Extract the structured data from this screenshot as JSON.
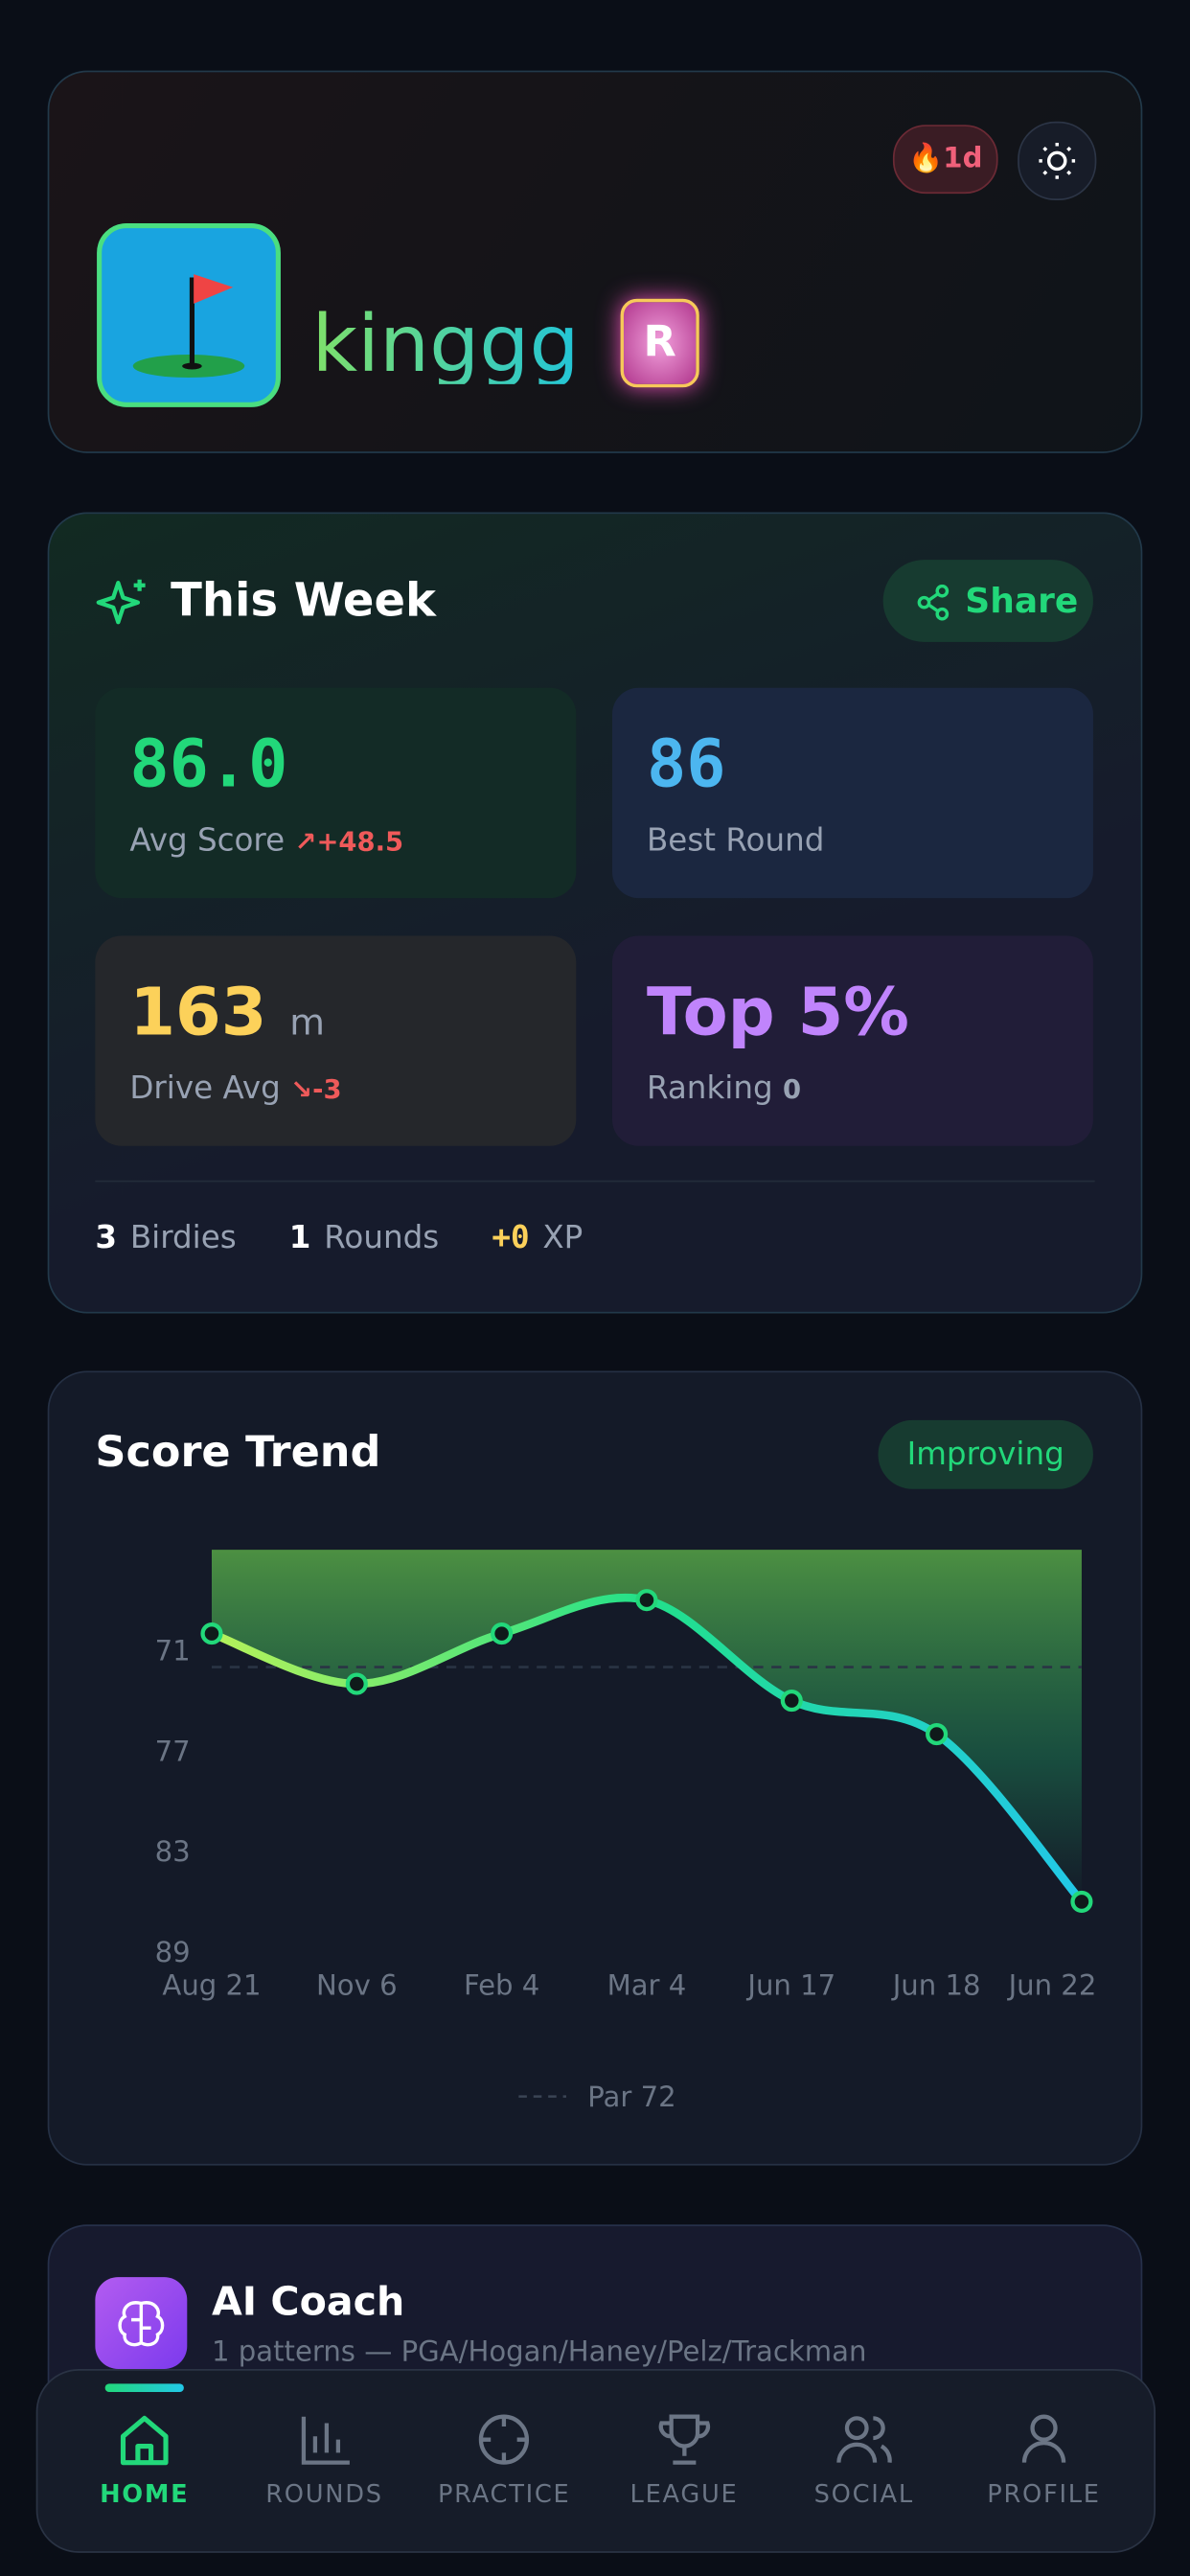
{
  "header": {
    "streak": "1d",
    "username": "kinggg",
    "badge": "R"
  },
  "this_week": {
    "title": "This Week",
    "share": "Share",
    "stats": [
      {
        "value": "86.0",
        "label": "Avg Score",
        "delta": "+48.5"
      },
      {
        "value": "86",
        "label": "Best Round"
      },
      {
        "value": "163",
        "unit": "m",
        "label": "Drive Avg",
        "delta": "-3"
      },
      {
        "value": "Top 5%",
        "label": "Ranking",
        "extra": "0"
      }
    ],
    "summary": [
      {
        "value": "3",
        "label": "Birdies"
      },
      {
        "value": "1",
        "label": "Rounds"
      },
      {
        "value": "+0",
        "label": "XP"
      }
    ]
  },
  "chart_data": {
    "type": "area-line",
    "title": "Score Trend",
    "status": "Improving",
    "categories": [
      "Aug 21",
      "Nov 6",
      "Feb 4",
      "Mar 4",
      "Jun 17",
      "Jun 18",
      "Jun 22"
    ],
    "values": [
      70,
      73,
      70,
      68,
      74,
      76,
      86
    ],
    "ylim": [
      65,
      89
    ],
    "inverted": true,
    "yticks": [
      71,
      77,
      83,
      89
    ],
    "reference": {
      "value": 72,
      "label": "Par 72"
    }
  },
  "coach": {
    "title": "AI Coach",
    "subtitle": "1 patterns — PGA/Hogan/Haney/Pelz/Trackman"
  },
  "nav": [
    "HOME",
    "ROUNDS",
    "PRACTICE",
    "LEAGUE",
    "SOCIAL",
    "PROFILE"
  ],
  "nav_active": 0
}
